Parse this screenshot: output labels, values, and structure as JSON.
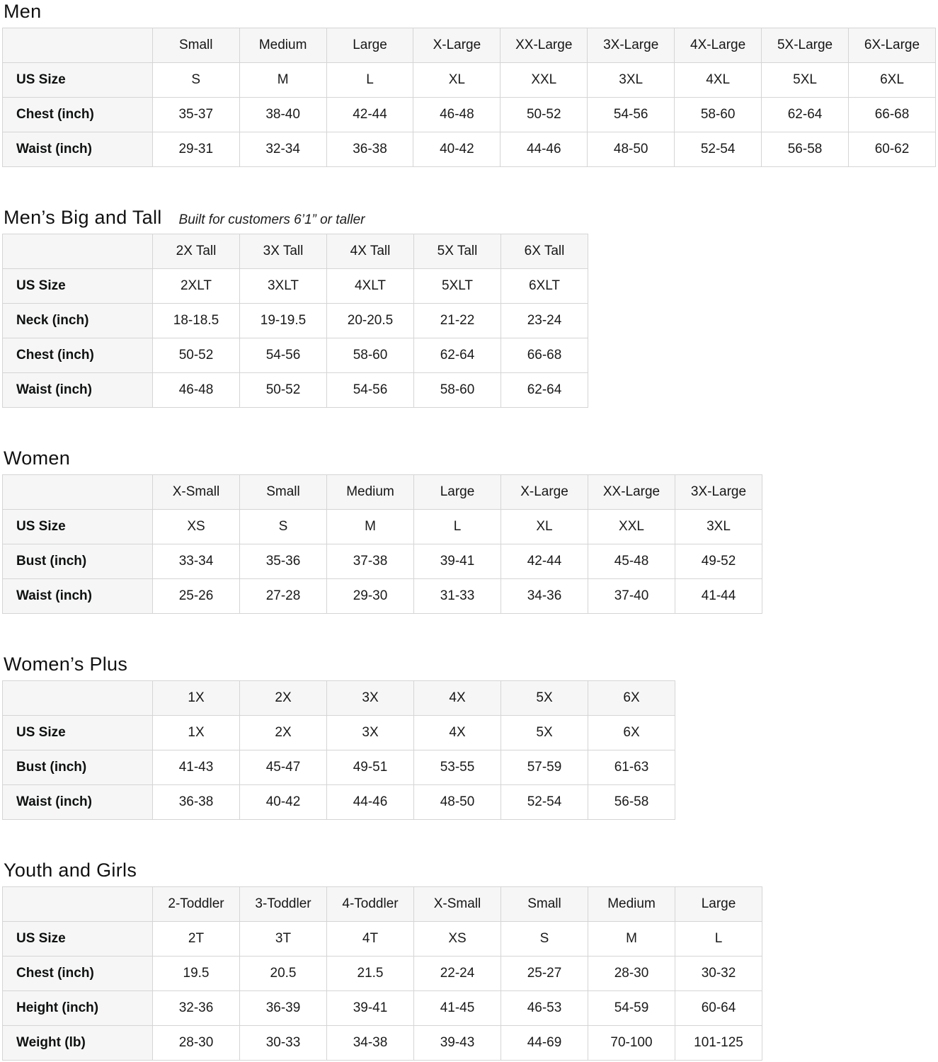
{
  "theme": {
    "page_bg": "#ffffff",
    "header_bg": "#f6f6f6",
    "border_color": "#d5d5d5",
    "text_color": "#0f1111"
  },
  "sections": [
    {
      "id": "men",
      "title": "Men",
      "subtitle": "",
      "columns": [
        "Small",
        "Medium",
        "Large",
        "X-Large",
        "XX-Large",
        "3X-Large",
        "4X-Large",
        "5X-Large",
        "6X-Large"
      ],
      "rows": [
        {
          "label": "US Size",
          "values": [
            "S",
            "M",
            "L",
            "XL",
            "XXL",
            "3XL",
            "4XL",
            "5XL",
            "6XL"
          ]
        },
        {
          "label": "Chest (inch)",
          "values": [
            "35-37",
            "38-40",
            "42-44",
            "46-48",
            "50-52",
            "54-56",
            "58-60",
            "62-64",
            "66-68"
          ]
        },
        {
          "label": "Waist (inch)",
          "values": [
            "29-31",
            "32-34",
            "36-38",
            "40-42",
            "44-46",
            "48-50",
            "52-54",
            "56-58",
            "60-62"
          ]
        }
      ]
    },
    {
      "id": "mens-big-and-tall",
      "title": "Men’s Big and Tall",
      "subtitle": "Built for customers 6’1” or taller",
      "columns": [
        "2X Tall",
        "3X Tall",
        "4X Tall",
        "5X Tall",
        "6X Tall"
      ],
      "rows": [
        {
          "label": "US Size",
          "values": [
            "2XLT",
            "3XLT",
            "4XLT",
            "5XLT",
            "6XLT"
          ]
        },
        {
          "label": "Neck (inch)",
          "values": [
            "18-18.5",
            "19-19.5",
            "20-20.5",
            "21-22",
            "23-24"
          ]
        },
        {
          "label": "Chest (inch)",
          "values": [
            "50-52",
            "54-56",
            "58-60",
            "62-64",
            "66-68"
          ]
        },
        {
          "label": "Waist (inch)",
          "values": [
            "46-48",
            "50-52",
            "54-56",
            "58-60",
            "62-64"
          ]
        }
      ]
    },
    {
      "id": "women",
      "title": "Women",
      "subtitle": "",
      "columns": [
        "X-Small",
        "Small",
        "Medium",
        "Large",
        "X-Large",
        "XX-Large",
        "3X-Large"
      ],
      "rows": [
        {
          "label": "US Size",
          "values": [
            "XS",
            "S",
            "M",
            "L",
            "XL",
            "XXL",
            "3XL"
          ]
        },
        {
          "label": "Bust (inch)",
          "values": [
            "33-34",
            "35-36",
            "37-38",
            "39-41",
            "42-44",
            "45-48",
            "49-52"
          ]
        },
        {
          "label": "Waist (inch)",
          "values": [
            "25-26",
            "27-28",
            "29-30",
            "31-33",
            "34-36",
            "37-40",
            "41-44"
          ]
        }
      ]
    },
    {
      "id": "womens-plus",
      "title": "Women’s  Plus",
      "subtitle": "",
      "columns": [
        "1X",
        "2X",
        "3X",
        "4X",
        "5X",
        "6X"
      ],
      "rows": [
        {
          "label": "US Size",
          "values": [
            "1X",
            "2X",
            "3X",
            "4X",
            "5X",
            "6X"
          ]
        },
        {
          "label": "Bust (inch)",
          "values": [
            "41-43",
            "45-47",
            "49-51",
            "53-55",
            "57-59",
            "61-63"
          ]
        },
        {
          "label": "Waist (inch)",
          "values": [
            "36-38",
            "40-42",
            "44-46",
            "48-50",
            "52-54",
            "56-58"
          ]
        }
      ]
    },
    {
      "id": "youth-and-girls",
      "title": "Youth and Girls",
      "subtitle": "",
      "columns": [
        "2-Toddler",
        "3-Toddler",
        "4-Toddler",
        "X-Small",
        "Small",
        "Medium",
        "Large"
      ],
      "rows": [
        {
          "label": "US Size",
          "values": [
            "2T",
            "3T",
            "4T",
            "XS",
            "S",
            "M",
            "L"
          ]
        },
        {
          "label": "Chest (inch)",
          "values": [
            "19.5",
            "20.5",
            "21.5",
            "22-24",
            "25-27",
            "28-30",
            "30-32"
          ]
        },
        {
          "label": "Height (inch)",
          "values": [
            "32-36",
            "36-39",
            "39-41",
            "41-45",
            "46-53",
            "54-59",
            "60-64"
          ]
        },
        {
          "label": "Weight (lb)",
          "values": [
            "28-30",
            "30-33",
            "34-38",
            "39-43",
            "44-69",
            "70-100",
            "101-125"
          ]
        }
      ]
    }
  ]
}
